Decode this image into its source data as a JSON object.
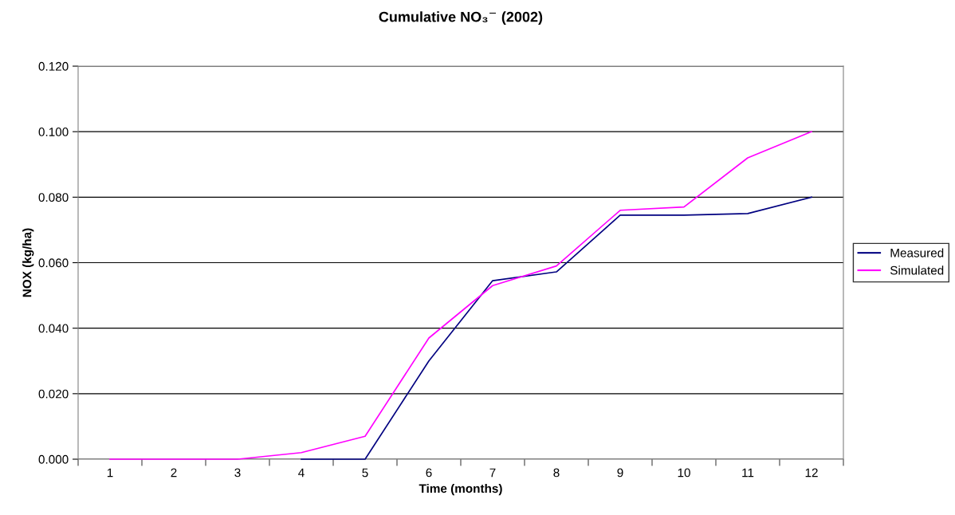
{
  "chart_data": {
    "type": "line",
    "title": "Cumulative NO₃$^{−}$ (2002)",
    "xlabel": "Time (months)",
    "ylabel": "NOX (kg/ha)",
    "categories": [
      "1",
      "2",
      "3",
      "4",
      "5",
      "6",
      "7",
      "8",
      "9",
      "10",
      "11",
      "12"
    ],
    "series": [
      {
        "name": "Measured",
        "color": "#000080",
        "values": [
          null,
          null,
          null,
          0,
          0,
          0.03,
          0.0545,
          0.0572,
          0.0745,
          0.0745,
          0.075,
          0.08
        ]
      },
      {
        "name": "Simulated",
        "color": "#ff00ff",
        "values": [
          0,
          0,
          0,
          0.002,
          0.007,
          0.037,
          0.053,
          0.059,
          0.076,
          0.077,
          0.092,
          0.1
        ]
      }
    ],
    "ylim": [
      0,
      0.12
    ],
    "yticks": [
      {
        "value": 0,
        "label": "0.000"
      },
      {
        "value": 0.02,
        "label": "0.020"
      },
      {
        "value": 0.04,
        "label": "0.040"
      },
      {
        "value": 0.06,
        "label": "0.060"
      },
      {
        "value": 0.08,
        "label": "0.080"
      },
      {
        "value": 0.1,
        "label": "0.100"
      },
      {
        "value": 0.12,
        "label": "0.120"
      }
    ],
    "grid": "y",
    "legend": "right",
    "marker": "none",
    "line_style": "solid"
  }
}
